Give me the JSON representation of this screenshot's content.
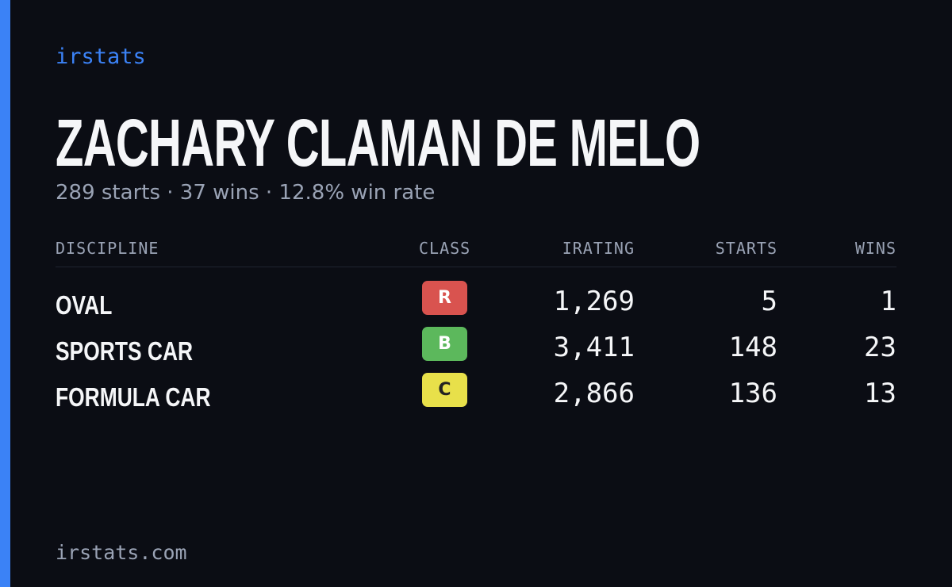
{
  "brand": "irstats",
  "name": "ZACHARY CLAMAN DE MELO",
  "subtitle": "289 starts · 37 wins · 12.8% win rate",
  "table": {
    "headers": [
      "DISCIPLINE",
      "CLASS",
      "IRATING",
      "STARTS",
      "WINS"
    ],
    "rows": [
      {
        "discipline": "OVAL",
        "class": "R",
        "class_color": "#d9534f",
        "irating": "1,269",
        "starts": "5",
        "wins": "1"
      },
      {
        "discipline": "SPORTS CAR",
        "class": "B",
        "class_color": "#5cb85c",
        "irating": "3,411",
        "starts": "148",
        "wins": "23"
      },
      {
        "discipline": "FORMULA CAR",
        "class": "C",
        "class_color": "#e8e04a",
        "irating": "2,866",
        "starts": "136",
        "wins": "13"
      }
    ]
  },
  "footer": "irstats.com"
}
